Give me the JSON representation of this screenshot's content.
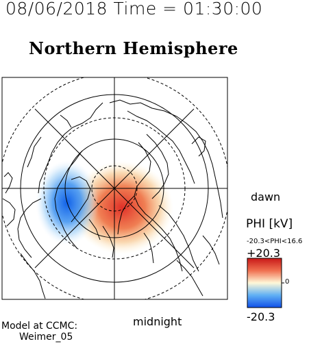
{
  "header": {
    "time_label": "08/06/2018 Time = 01:30:00",
    "hemisphere_label": "Northern Hemisphere"
  },
  "map": {
    "dawn_label": "dawn",
    "midnight_label": "midnight"
  },
  "colorbar": {
    "quantity_label": "PHI [kV]",
    "range_label": "-20.3<PHI<16.6",
    "max_label": "+20.3",
    "min_label": "-20.3",
    "zero_label": "0",
    "positive_color": "#e02020",
    "negative_color": "#1470f0"
  },
  "footer": {
    "model_label": "Model at CCMC:",
    "model_name": "Weimer_05"
  }
}
